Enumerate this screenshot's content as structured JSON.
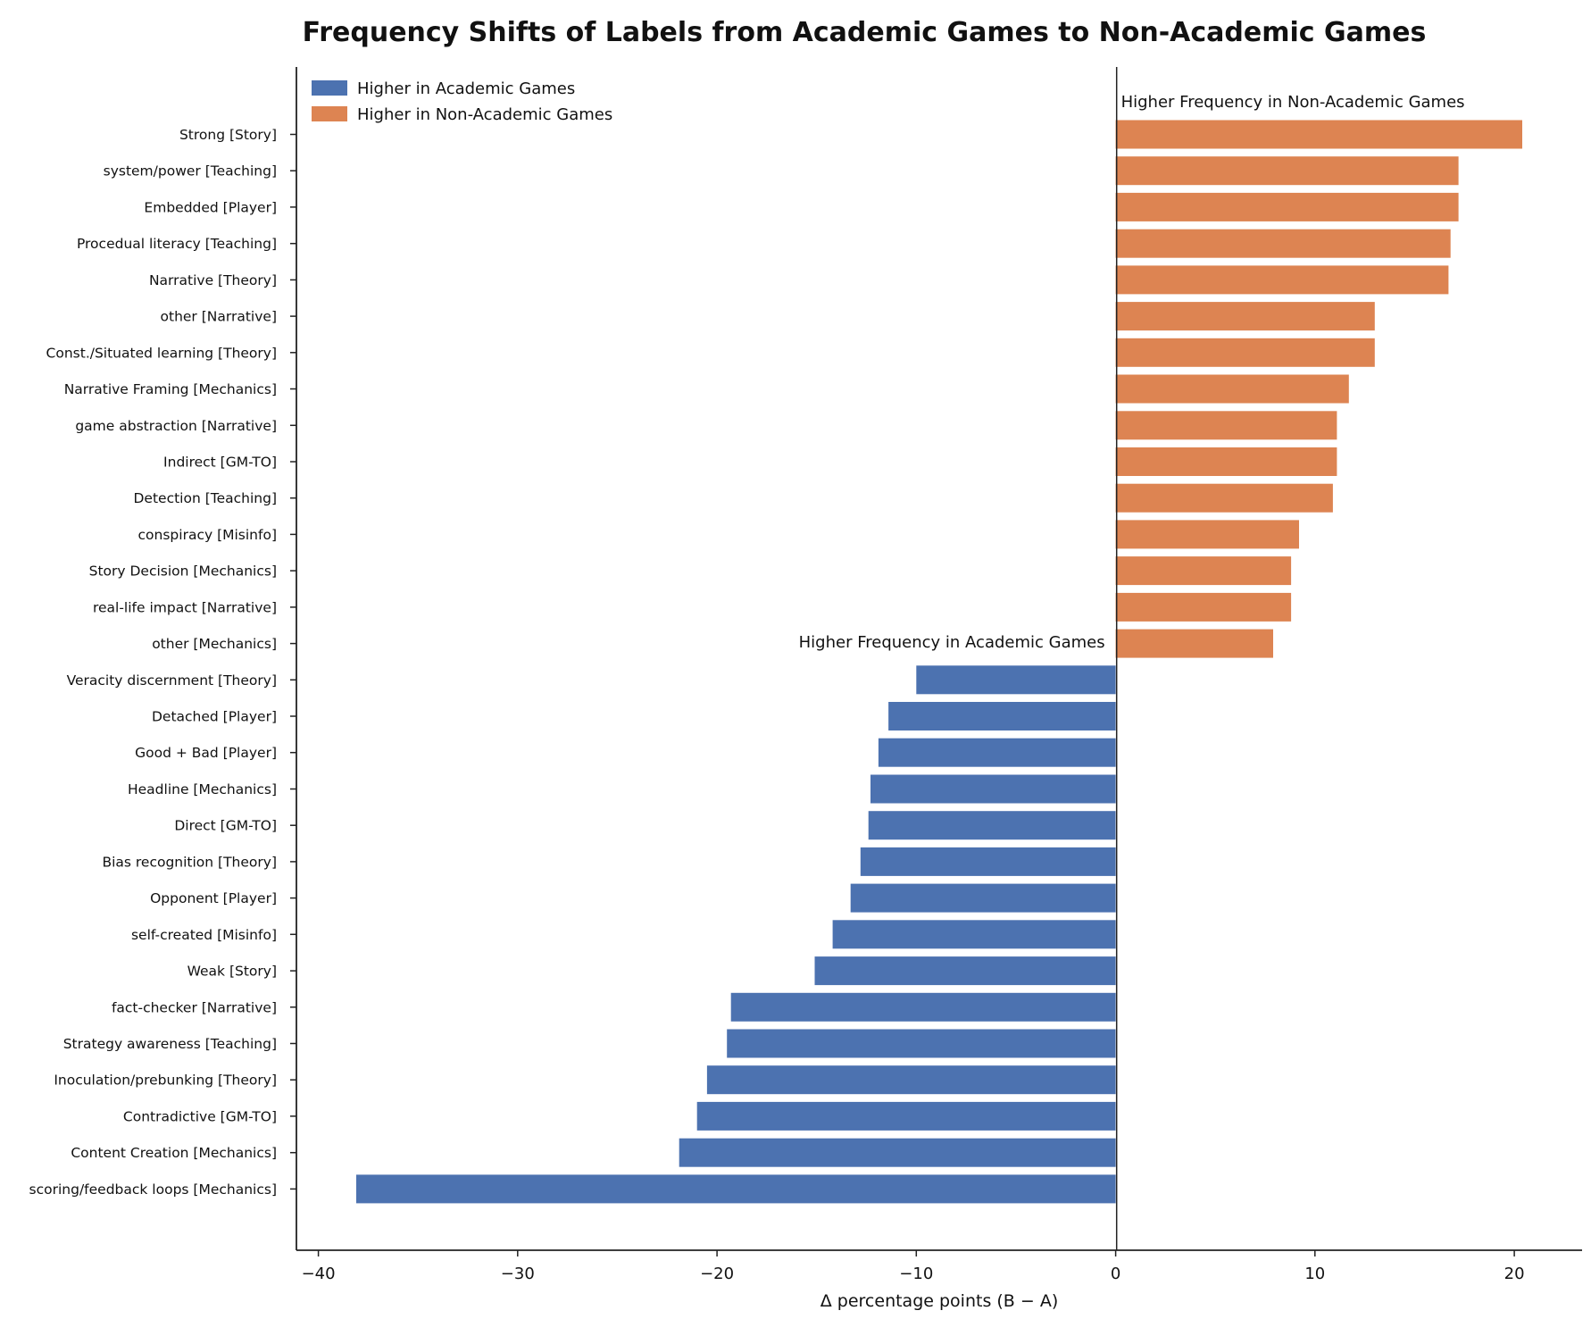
{
  "chart_data": {
    "type": "bar",
    "orientation": "horizontal",
    "title": "Frequency Shifts of Labels from Academic Games to Non-Academic Games",
    "xlabel": "Δ percentage points  (B − A)",
    "ylabel": "",
    "xlim": [
      -41.1,
      23.4
    ],
    "xticks": [
      -40,
      -30,
      -20,
      -10,
      0,
      10,
      20
    ],
    "xtick_labels": [
      "−40",
      "−30",
      "−20",
      "−10",
      "0",
      "10",
      "20"
    ],
    "legend": {
      "placement": "top-left",
      "entries": [
        {
          "label": "Higher in Academic Games",
          "color": "#4c72b0"
        },
        {
          "label": "Higher in Non-Academic Games",
          "color": "#dd8452"
        }
      ]
    },
    "annotations": {
      "positive": "Higher Frequency in Non-Academic Games",
      "negative": "Higher Frequency in Academic Games"
    },
    "colors": {
      "negative": "#4c72b0",
      "positive": "#dd8452"
    },
    "grid": false,
    "categories": [
      "Strong  [Story]",
      "system/power  [Teaching]",
      "Embedded  [Player]",
      "Procedual literacy  [Teaching]",
      "Narrative  [Theory]",
      "other  [Narrative]",
      "Const./Situated learning  [Theory]",
      "Narrative Framing  [Mechanics]",
      "game abstraction  [Narrative]",
      "Indirect  [GM-TO]",
      "Detection  [Teaching]",
      "conspiracy  [Misinfo]",
      "Story Decision  [Mechanics]",
      "real-life impact  [Narrative]",
      "other  [Mechanics]",
      "Veracity discernment  [Theory]",
      "Detached  [Player]",
      "Good + Bad  [Player]",
      "Headline  [Mechanics]",
      "Direct  [GM-TO]",
      "Bias recognition  [Theory]",
      "Opponent  [Player]",
      "self-created  [Misinfo]",
      "Weak  [Story]",
      "fact-checker  [Narrative]",
      "Strategy awareness  [Teaching]",
      "Inoculation/prebunking  [Theory]",
      "Contradictive  [GM-TO]",
      "Content Creation  [Mechanics]",
      "scoring/feedback loops  [Mechanics]"
    ],
    "values": [
      20.4,
      17.2,
      17.2,
      16.8,
      16.7,
      13.0,
      13.0,
      11.7,
      11.1,
      11.1,
      10.9,
      9.2,
      8.8,
      8.8,
      7.9,
      -10.0,
      -11.4,
      -11.9,
      -12.3,
      -12.4,
      -12.8,
      -13.3,
      -14.2,
      -15.1,
      -19.3,
      -19.5,
      -20.5,
      -21.0,
      -21.9,
      -38.1
    ]
  }
}
